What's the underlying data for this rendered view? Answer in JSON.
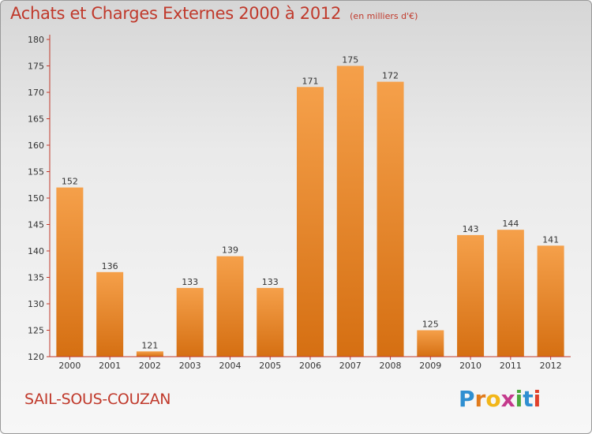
{
  "header": {
    "title": "Achats et Charges Externes 2000 à 2012",
    "subtitle": "(en milliers d'€)"
  },
  "footer": {
    "commune": "SAIL-SOUS-COUZAN",
    "logo_letters": [
      "P",
      "r",
      "o",
      "x",
      "i",
      "t",
      "i"
    ]
  },
  "colors": {
    "title": "#c0392b",
    "bar_light": "#f5a04a",
    "bar_dark": "#d56f12",
    "axis": "#c0392b",
    "logo": [
      "#2f8fd1",
      "#e07b1c",
      "#f2b619",
      "#c43a8c",
      "#4aa83c",
      "#2f8fd1",
      "#e0412c"
    ]
  },
  "chart_data": {
    "type": "bar",
    "categories": [
      "2000",
      "2001",
      "2002",
      "2003",
      "2004",
      "2005",
      "2006",
      "2007",
      "2008",
      "2009",
      "2010",
      "2011",
      "2012"
    ],
    "values": [
      152,
      136,
      121,
      133,
      139,
      133,
      171,
      175,
      172,
      125,
      143,
      144,
      141
    ],
    "ylim": [
      120,
      180
    ],
    "yticks": [
      120,
      125,
      130,
      135,
      140,
      145,
      150,
      155,
      160,
      165,
      170,
      175,
      180
    ],
    "grid": false,
    "data_labels": true
  }
}
